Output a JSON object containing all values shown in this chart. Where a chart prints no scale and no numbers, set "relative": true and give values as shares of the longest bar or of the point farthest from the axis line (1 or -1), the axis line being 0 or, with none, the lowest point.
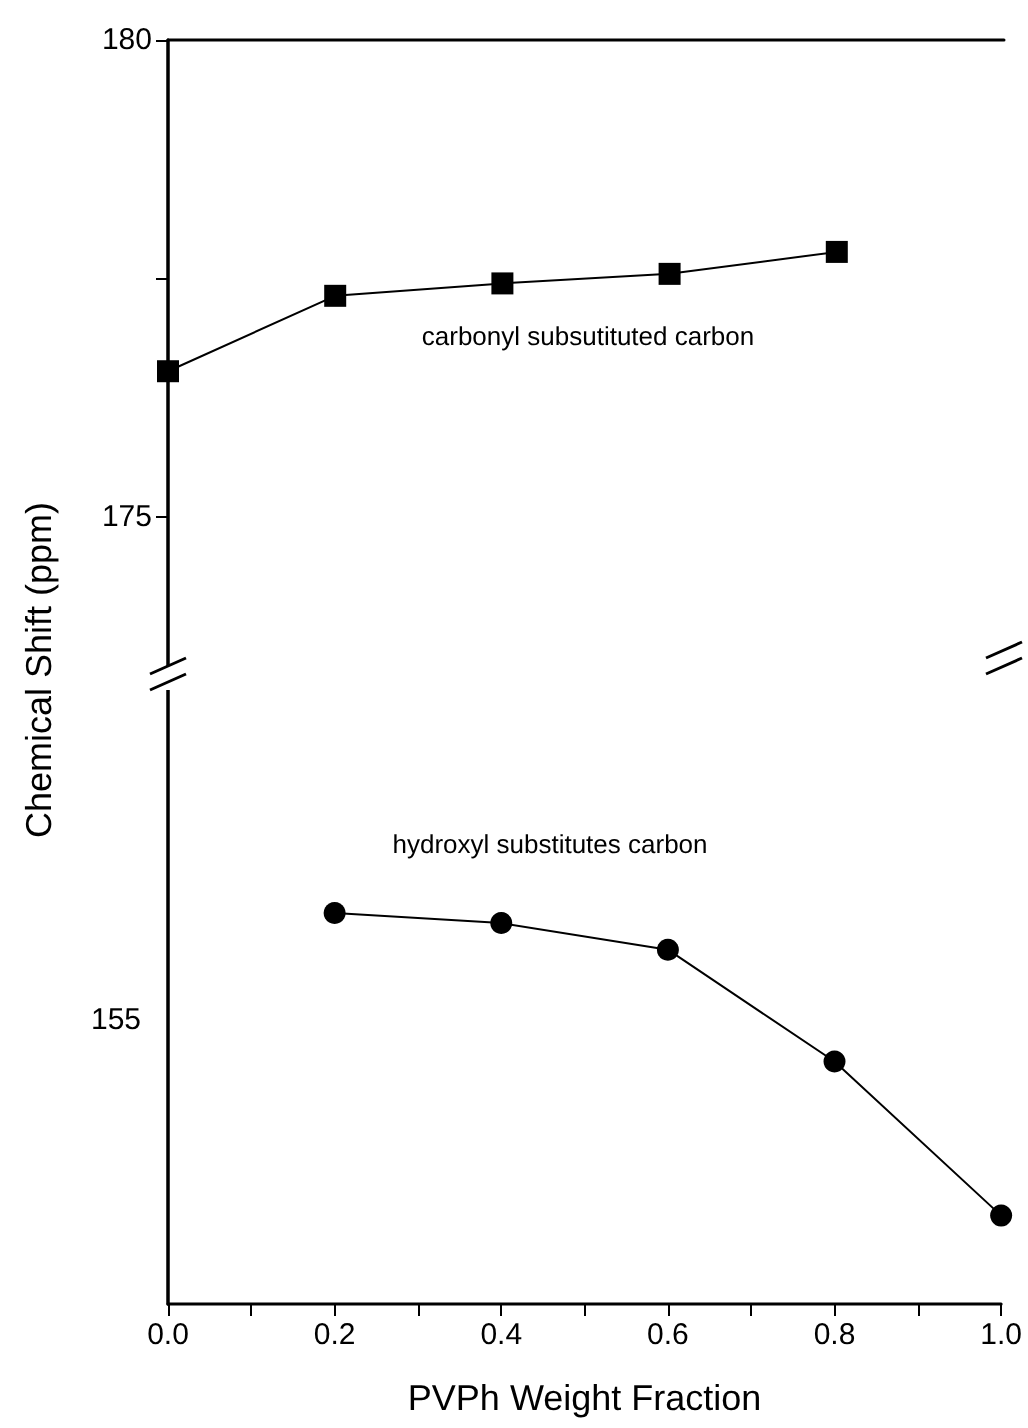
{
  "chart_data": [
    {
      "type": "line",
      "x": [
        0.0,
        0.2,
        0.4,
        0.6,
        0.8
      ],
      "ylabel": "Chemical Shift (ppm)",
      "xlim": [
        0,
        1
      ],
      "ylim": [
        173.4,
        180
      ],
      "yticks": [
        175,
        {
          "value": 177.5,
          "label": null
        },
        180
      ],
      "tick_labels": "y",
      "marker": "square",
      "grid": false,
      "series": [
        {
          "color": "#000000",
          "values": [
            176.53,
            177.32,
            177.45,
            177.55,
            177.78
          ]
        }
      ],
      "annotations": [
        "carbonyl subsutituted carbon"
      ]
    },
    {
      "type": "line",
      "x": [
        0.2,
        0.4,
        0.6,
        0.8,
        1.0
      ],
      "xlabel": "PVPh Weight Fraction",
      "xlim": [
        0,
        1
      ],
      "relative": true,
      "tick_labels": "x",
      "xticks": [
        {
          "value": 0,
          "label": "0.0"
        },
        {
          "value": 0.1,
          "label": null
        },
        {
          "value": 0.2,
          "label": "0.2"
        },
        {
          "value": 0.3,
          "label": null
        },
        {
          "value": 0.4,
          "label": "0.4"
        },
        {
          "value": 0.5,
          "label": null
        },
        {
          "value": 0.6,
          "label": "0.6"
        },
        {
          "value": 0.7,
          "label": null
        },
        {
          "value": 0.8,
          "label": "0.8"
        },
        {
          "value": 0.9,
          "label": null
        },
        {
          "value": 1,
          "label": "1.0"
        }
      ],
      "marker": "circle",
      "grid": false,
      "series": [
        {
          "color": "#000000",
          "values": [
            1,
            0.974,
            0.906,
            0.62,
            0.226
          ]
        }
      ],
      "annotations": [
        "hydroxyl substitutes carbon",
        "155"
      ]
    }
  ]
}
